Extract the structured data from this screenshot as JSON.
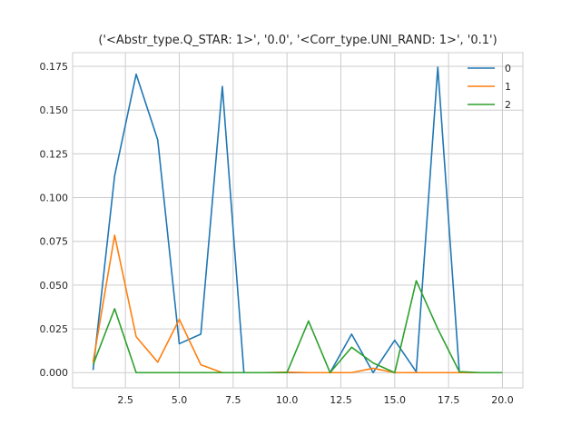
{
  "chart_data": {
    "type": "line",
    "title": "('<Abstr_type.Q_STAR: 1>', '0.0', '<Corr_type.UNI_RAND: 1>', '0.1')",
    "xlabel": "",
    "ylabel": "",
    "xlim": [
      0.05,
      20.95
    ],
    "ylim": [
      -0.0087,
      0.1828
    ],
    "xticks": [
      2.5,
      5.0,
      7.5,
      10.0,
      12.5,
      15.0,
      17.5,
      20.0
    ],
    "xtick_labels": [
      "2.5",
      "5.0",
      "7.5",
      "10.0",
      "12.5",
      "15.0",
      "17.5",
      "20.0"
    ],
    "yticks": [
      0.0,
      0.025,
      0.05,
      0.075,
      0.1,
      0.125,
      0.15,
      0.175
    ],
    "ytick_labels": [
      "0.000",
      "0.025",
      "0.050",
      "0.075",
      "0.100",
      "0.125",
      "0.150",
      "0.175"
    ],
    "grid": true,
    "legend_position": "top-right",
    "x": [
      1,
      2,
      3,
      4,
      5,
      6,
      7,
      8,
      9,
      10,
      11,
      12,
      13,
      14,
      15,
      16,
      17,
      18,
      19,
      20
    ],
    "series": [
      {
        "name": "0",
        "color": "#1f77b4",
        "values": [
          0.0015,
          0.1125,
          0.1705,
          0.133,
          0.0165,
          0.022,
          0.1635,
          0.0,
          0.0,
          0.0,
          0.0,
          0.0,
          0.022,
          0.0,
          0.0185,
          0.0005,
          0.1745,
          0.0,
          0.0,
          0.0
        ]
      },
      {
        "name": "1",
        "color": "#ff7f0e",
        "values": [
          0.006,
          0.0785,
          0.0205,
          0.006,
          0.0305,
          0.0045,
          0.0,
          0.0,
          0.0,
          0.0003,
          0.0,
          0.0,
          0.0,
          0.0025,
          0.0,
          0.0,
          0.0,
          0.0,
          0.0,
          0.0
        ]
      },
      {
        "name": "2",
        "color": "#2ca02c",
        "values": [
          0.0045,
          0.0365,
          0.0,
          0.0,
          0.0,
          0.0,
          0.0,
          0.0,
          0.0,
          0.0,
          0.0295,
          0.0,
          0.0145,
          0.0055,
          0.0,
          0.0525,
          0.025,
          0.0005,
          0.0,
          0.0
        ]
      }
    ]
  }
}
